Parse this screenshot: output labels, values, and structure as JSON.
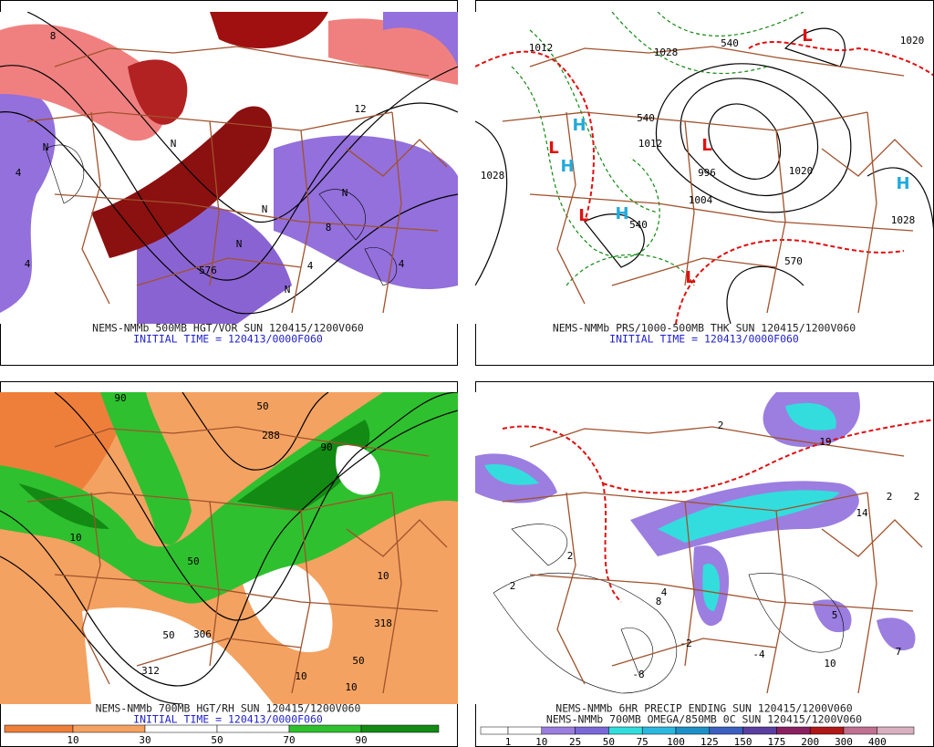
{
  "panels": [
    {
      "captions": [
        "NEMS-NMMb 500MB HGT/VOR SUN 120415/1200V060",
        "INITIAL TIME = 120413/0000F060"
      ],
      "labels": [
        "N",
        "N",
        "N",
        "N",
        "4",
        "8",
        "12",
        "576",
        "4",
        "8",
        "4",
        "N",
        "N",
        "4"
      ]
    },
    {
      "captions": [
        "NEMS-NMMb PRS/1000-500MB THK SUN 120415/1200V060",
        "INITIAL TIME = 120413/0000F060"
      ],
      "labels": [
        "1012",
        "1028",
        "1028",
        "1012",
        "1020",
        "1020",
        "1028",
        "1004",
        "996",
        "540",
        "540",
        "570",
        "540",
        "H",
        "H",
        "H",
        "H",
        "L",
        "L",
        "L",
        "L",
        "L"
      ]
    },
    {
      "captions": [
        "NEMS-NMMb 700MB HGT/RH SUN 120415/1200V060",
        "INITIAL TIME = 120413/0000F060"
      ],
      "labels": [
        "90",
        "50",
        "10",
        "50",
        "90",
        "10",
        "50",
        "306",
        "312",
        "318",
        "10",
        "50",
        "10",
        "288"
      ],
      "colorbar": {
        "ticks": [
          10,
          30,
          50,
          70,
          90
        ],
        "colors": [
          "#ee7f3b",
          "#f4a261",
          "#ffffff",
          "#ffffff",
          "#2fc02f",
          "#138a13"
        ]
      }
    },
    {
      "captions": [
        "NEMS-NMMb 6HR PRECIP ENDING SUN 120415/1200V060",
        "NEMS-NMMb 700MB OMEGA/850MB 0C SUN 120415/1200V060"
      ],
      "labels": [
        "2",
        "2",
        "2",
        "-4",
        "-2",
        "4",
        "8",
        "2",
        "-8",
        "10",
        "7",
        "5",
        "14",
        "19",
        "2"
      ],
      "colorbar": {
        "ticks": [
          1,
          10,
          25,
          50,
          75,
          100,
          125,
          150,
          175,
          200,
          300,
          400
        ],
        "colors": [
          "#ffffff",
          "#ffffff",
          "#9b7ee0",
          "#7b68d8",
          "#33dddd",
          "#2ab8e0",
          "#1e90c8",
          "#3b5fc0",
          "#5a3fa0",
          "#8a2060",
          "#b01818",
          "#c07090",
          "#d8b0c0"
        ]
      }
    }
  ]
}
